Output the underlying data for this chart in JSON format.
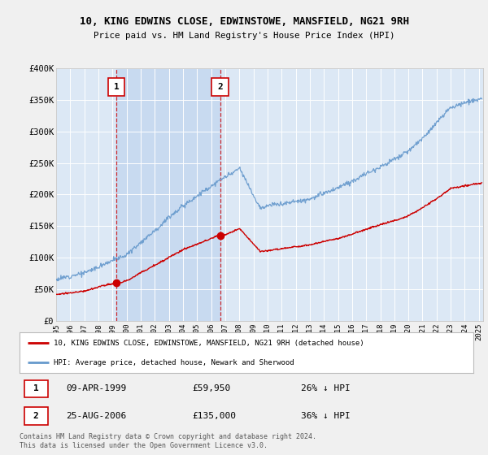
{
  "title": "10, KING EDWINS CLOSE, EDWINSTOWE, MANSFIELD, NG21 9RH",
  "subtitle": "Price paid vs. HM Land Registry's House Price Index (HPI)",
  "ylim": [
    0,
    400000
  ],
  "yticks": [
    0,
    50000,
    100000,
    150000,
    200000,
    250000,
    300000,
    350000,
    400000
  ],
  "ytick_labels": [
    "£0",
    "£50K",
    "£100K",
    "£150K",
    "£200K",
    "£250K",
    "£300K",
    "£350K",
    "£400K"
  ],
  "fig_bg": "#f0f0f0",
  "plot_bg": "#dce8f5",
  "shade_bg": "#c8daf0",
  "grid_color": "#ffffff",
  "legend_line1": "10, KING EDWINS CLOSE, EDWINSTOWE, MANSFIELD, NG21 9RH (detached house)",
  "legend_line2": "HPI: Average price, detached house, Newark and Sherwood",
  "sold_color": "#cc0000",
  "hpi_color": "#6699cc",
  "transaction1_date": "09-APR-1999",
  "transaction1_price": "£59,950",
  "transaction1_hpi": "26% ↓ HPI",
  "transaction2_date": "25-AUG-2006",
  "transaction2_price": "£135,000",
  "transaction2_hpi": "36% ↓ HPI",
  "footer": "Contains HM Land Registry data © Crown copyright and database right 2024.\nThis data is licensed under the Open Government Licence v3.0.",
  "sale1_x": 1999.27,
  "sale1_y": 59950,
  "sale2_x": 2006.65,
  "sale2_y": 135000,
  "xlim_start": 1995,
  "xlim_end": 2025.3
}
